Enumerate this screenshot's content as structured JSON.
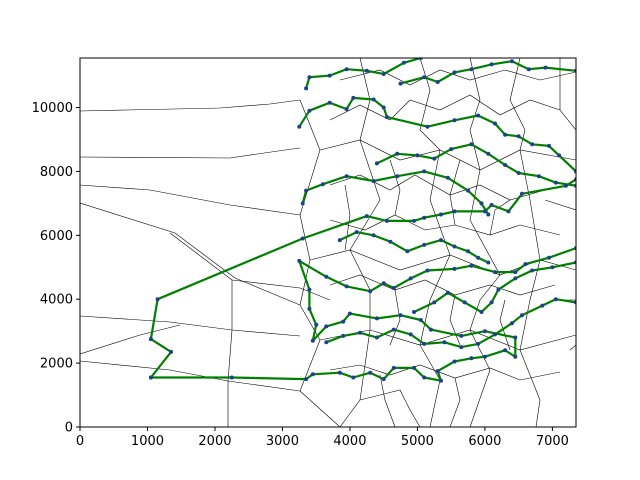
{
  "chart_data": {
    "type": "line",
    "title": "",
    "xlabel": "",
    "ylabel": "",
    "xlim": [
      0,
      7350
    ],
    "ylim": [
      0,
      11550
    ],
    "x_ticks": [
      0,
      1000,
      2000,
      3000,
      4000,
      5000,
      6000,
      7000
    ],
    "y_ticks": [
      0,
      2000,
      4000,
      6000,
      8000,
      10000
    ],
    "grid": false,
    "legend": "none",
    "colors": {
      "tour": "#008000",
      "points": "#1f3f8f",
      "voronoi": "#000000"
    },
    "series": [
      {
        "values": [
          [
            1050,
            1550
          ],
          [
            1350,
            2350
          ],
          [
            1050,
            2750
          ],
          [
            1150,
            4000
          ],
          [
            3300,
            5900
          ],
          [
            4250,
            6600
          ],
          [
            4550,
            6450
          ],
          [
            4950,
            6450
          ],
          [
            5100,
            6550
          ],
          [
            5350,
            6650
          ],
          [
            5550,
            6750
          ],
          [
            6000,
            6750
          ],
          [
            6100,
            6950
          ],
          [
            6350,
            6750
          ],
          [
            6550,
            7300
          ],
          [
            7200,
            7550
          ],
          [
            7350,
            7750
          ]
        ]
      },
      {
        "values": [
          [
            3300,
            7000
          ],
          [
            3350,
            7400
          ],
          [
            3600,
            7600
          ],
          [
            3950,
            7850
          ],
          [
            4350,
            7700
          ],
          [
            4700,
            7850
          ],
          [
            5100,
            8000
          ],
          [
            5450,
            7800
          ],
          [
            5750,
            7400
          ],
          [
            5950,
            7000
          ],
          [
            6050,
            6650
          ]
        ]
      },
      {
        "values": [
          [
            1050,
            1550
          ],
          [
            2250,
            1550
          ],
          [
            3350,
            1500
          ],
          [
            3450,
            1650
          ],
          [
            3850,
            1700
          ],
          [
            4050,
            1550
          ],
          [
            4300,
            1700
          ],
          [
            4500,
            1500
          ],
          [
            4650,
            1850
          ],
          [
            4950,
            1850
          ],
          [
            5100,
            1550
          ],
          [
            5350,
            1450
          ],
          [
            5300,
            1750
          ],
          [
            5550,
            2050
          ],
          [
            5800,
            2150
          ],
          [
            6000,
            2200
          ],
          [
            6300,
            2400
          ],
          [
            6450,
            2200
          ],
          [
            6450,
            2800
          ],
          [
            6000,
            3000
          ],
          [
            5650,
            2850
          ],
          [
            5200,
            3050
          ],
          [
            5050,
            3350
          ],
          [
            4750,
            3500
          ],
          [
            4400,
            3400
          ],
          [
            4000,
            3550
          ],
          [
            3900,
            3300
          ],
          [
            3650,
            3150
          ],
          [
            3450,
            2700
          ],
          [
            3500,
            3200
          ],
          [
            3400,
            3700
          ],
          [
            3400,
            4300
          ],
          [
            3250,
            5200
          ],
          [
            3650,
            4700
          ],
          [
            3950,
            4400
          ],
          [
            4300,
            4250
          ],
          [
            4500,
            4500
          ],
          [
            4650,
            4350
          ],
          [
            4900,
            4650
          ],
          [
            5150,
            4900
          ],
          [
            5550,
            4950
          ],
          [
            5800,
            5050
          ],
          [
            6150,
            4850
          ],
          [
            6450,
            4850
          ],
          [
            6600,
            5100
          ],
          [
            6950,
            5300
          ],
          [
            7350,
            5600
          ]
        ]
      },
      {
        "values": [
          [
            3650,
            2650
          ],
          [
            3900,
            2850
          ],
          [
            4150,
            2950
          ],
          [
            4400,
            2800
          ],
          [
            4650,
            3050
          ],
          [
            4900,
            2900
          ],
          [
            5100,
            2600
          ],
          [
            5400,
            2650
          ],
          [
            5650,
            2500
          ],
          [
            5900,
            2600
          ],
          [
            6150,
            2900
          ],
          [
            6400,
            3250
          ],
          [
            6550,
            3500
          ],
          [
            6850,
            3800
          ],
          [
            7050,
            4000
          ],
          [
            7350,
            3900
          ]
        ]
      },
      {
        "values": [
          [
            4950,
            3600
          ],
          [
            5250,
            3900
          ],
          [
            5450,
            4200
          ],
          [
            5700,
            3900
          ],
          [
            5950,
            3600
          ],
          [
            6100,
            3900
          ],
          [
            6200,
            4300
          ],
          [
            6450,
            4650
          ],
          [
            6700,
            4900
          ],
          [
            7000,
            5000
          ],
          [
            7350,
            5150
          ]
        ]
      },
      {
        "values": [
          [
            3250,
            9400
          ],
          [
            3400,
            9900
          ],
          [
            3700,
            10150
          ],
          [
            3950,
            9950
          ],
          [
            4050,
            10300
          ],
          [
            4350,
            10250
          ],
          [
            4500,
            10000
          ],
          [
            4550,
            9700
          ],
          [
            5150,
            9400
          ],
          [
            5550,
            9600
          ],
          [
            5900,
            9750
          ],
          [
            6150,
            9500
          ],
          [
            6300,
            9150
          ],
          [
            6500,
            9100
          ],
          [
            6700,
            8850
          ],
          [
            6950,
            8800
          ],
          [
            7100,
            8500
          ],
          [
            7350,
            8000
          ]
        ]
      },
      {
        "values": [
          [
            3350,
            10600
          ],
          [
            3400,
            10950
          ],
          [
            3700,
            11000
          ],
          [
            3950,
            11200
          ],
          [
            4250,
            11150
          ],
          [
            4500,
            11050
          ],
          [
            4800,
            11400
          ],
          [
            5050,
            11550
          ]
        ]
      },
      {
        "values": [
          [
            4750,
            10750
          ],
          [
            5100,
            10950
          ],
          [
            5300,
            10800
          ],
          [
            5550,
            11100
          ],
          [
            5800,
            11200
          ],
          [
            6100,
            11350
          ],
          [
            6400,
            11450
          ],
          [
            6650,
            11200
          ],
          [
            6900,
            11250
          ],
          [
            7350,
            11150
          ]
        ]
      },
      {
        "values": [
          [
            4400,
            8250
          ],
          [
            4700,
            8550
          ],
          [
            5000,
            8500
          ],
          [
            5250,
            8400
          ],
          [
            5500,
            8700
          ],
          [
            5800,
            8850
          ],
          [
            6050,
            8550
          ],
          [
            6300,
            8200
          ],
          [
            6500,
            7950
          ],
          [
            6800,
            7850
          ],
          [
            7050,
            7650
          ],
          [
            7350,
            7550
          ]
        ]
      },
      {
        "values": [
          [
            3850,
            5850
          ],
          [
            4100,
            6100
          ],
          [
            4350,
            6000
          ],
          [
            4600,
            5800
          ],
          [
            4850,
            5500
          ],
          [
            5100,
            5700
          ],
          [
            5350,
            5850
          ],
          [
            5550,
            5650
          ],
          [
            5750,
            5500
          ],
          [
            5900,
            5300
          ],
          [
            6050,
            5150
          ]
        ]
      }
    ]
  }
}
